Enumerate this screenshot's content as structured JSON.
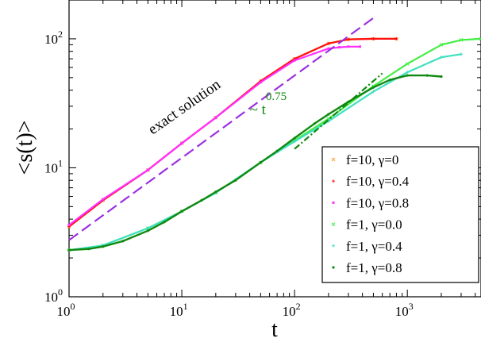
{
  "chart_data": {
    "type": "scatter",
    "title": "",
    "xlabel": "t",
    "ylabel": "<s(t)>",
    "xscale": "log",
    "yscale": "log",
    "xlim": [
      1,
      4500
    ],
    "ylim": [
      1,
      200
    ],
    "x_ticks": [
      {
        "base": "10",
        "exp": "0"
      },
      {
        "base": "10",
        "exp": "1"
      },
      {
        "base": "10",
        "exp": "2"
      },
      {
        "base": "10",
        "exp": "3"
      }
    ],
    "y_ticks": [
      {
        "base": "10",
        "exp": "0"
      },
      {
        "base": "10",
        "exp": "1"
      },
      {
        "base": "10",
        "exp": "2"
      }
    ],
    "grid": false,
    "legend_position": "bottom-right",
    "series": [
      {
        "name": "f=10, γ=0",
        "color": "#ff9f30",
        "marker": "x",
        "x": [
          1,
          2,
          5,
          10,
          20,
          50,
          100,
          200,
          300,
          500,
          800
        ],
        "y": [
          3.5,
          5.6,
          9.6,
          15.5,
          24.5,
          47,
          70,
          92,
          99,
          100,
          100
        ]
      },
      {
        "name": "f=10, γ=0.4",
        "color": "#ff1010",
        "marker": "plus",
        "x": [
          1,
          2,
          5,
          10,
          20,
          50,
          100,
          200,
          300,
          500,
          800
        ],
        "y": [
          3.5,
          5.6,
          9.6,
          15.5,
          24.5,
          47,
          70,
          92,
          99,
          100,
          100
        ]
      },
      {
        "name": "f=10, γ=0.8",
        "color": "#ff30ff",
        "marker": "square",
        "x": [
          1,
          2,
          5,
          10,
          20,
          50,
          100,
          200,
          250,
          300,
          380
        ],
        "y": [
          3.6,
          5.7,
          9.6,
          15.5,
          24.5,
          46,
          68,
          84,
          86,
          87,
          87
        ]
      },
      {
        "name": "f=1,  γ=0.0",
        "color": "#44ee44",
        "marker": "x",
        "x": [
          1,
          2,
          5,
          10,
          20,
          50,
          100,
          200,
          500,
          1000,
          2000,
          3000,
          4500
        ],
        "y": [
          2.3,
          2.5,
          3.4,
          4.6,
          6.4,
          11,
          16.3,
          24,
          43,
          64,
          90,
          98,
          100
        ]
      },
      {
        "name": "f=1,  γ=0.4",
        "color": "#40e0c0",
        "marker": "plus",
        "x": [
          1,
          2,
          5,
          10,
          20,
          50,
          100,
          200,
          500,
          1000,
          2000,
          3000
        ],
        "y": [
          2.3,
          2.5,
          3.4,
          4.6,
          6.4,
          11,
          16,
          23,
          39,
          55,
          72,
          76
        ]
      },
      {
        "name": "f=1,  γ=0.8",
        "color": "#118811",
        "marker": "circle",
        "x": [
          1,
          1.5,
          2,
          3,
          5,
          7,
          10,
          15,
          20,
          30,
          50,
          70,
          100,
          150,
          200,
          300,
          500,
          700,
          1000,
          1500,
          2000
        ],
        "y": [
          2.3,
          2.35,
          2.45,
          2.7,
          3.25,
          3.8,
          4.6,
          5.6,
          6.5,
          8,
          11,
          13.5,
          17,
          22,
          26,
          32.5,
          42,
          48,
          52,
          52,
          51
        ]
      }
    ],
    "lines": [
      {
        "name": "exact solution",
        "color": "#9b30e0",
        "style": "dashed",
        "x": [
          1,
          500
        ],
        "y": [
          2.75,
          145
        ]
      },
      {
        "name": "~ t^0.75",
        "color": "#118811",
        "style": "dash-dot",
        "x": [
          100,
          600
        ],
        "y": [
          14,
          54
        ]
      }
    ],
    "annotations": [
      {
        "text": "exact solution",
        "color": "#000000",
        "x": 5.5,
        "y": 18
      },
      {
        "base": "~ t",
        "exp": "0.75",
        "color": "#118811",
        "x": 40,
        "y": 26
      }
    ]
  }
}
